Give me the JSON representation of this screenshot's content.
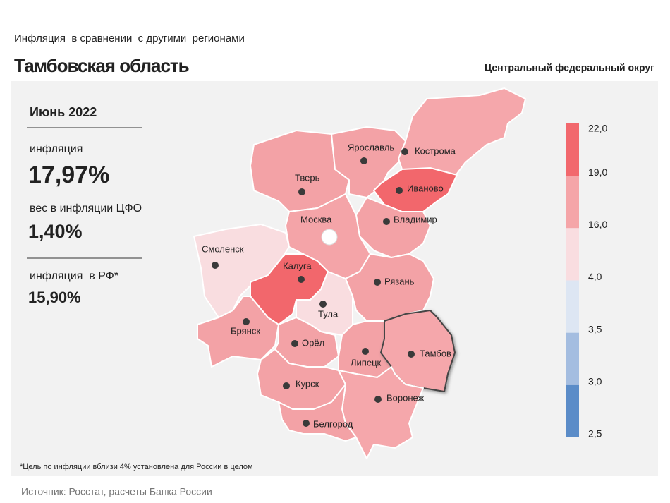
{
  "header": {
    "subtitle": "Инфляция  в сравнении  с другими  регионами",
    "title": "Тамбовская область",
    "district": "Центральный федеральный округ"
  },
  "panel": {
    "period": "Июнь 2022",
    "inflation_label": "инфляция",
    "inflation_value": "17,97%",
    "weight_label": "вес в инфляции ЦФО",
    "weight_value": "1,40%",
    "russia_label": "инфляция  в РФ*",
    "russia_value": "15,90%"
  },
  "map": {
    "regions": [
      {
        "name": "Тверь",
        "color": "#f3a2a6"
      },
      {
        "name": "Ярославль",
        "color": "#f3a2a6"
      },
      {
        "name": "Кострома",
        "color": "#f5a7ab"
      },
      {
        "name": "Иваново",
        "color": "#f2676c"
      },
      {
        "name": "Владимир",
        "color": "#f3a2a6"
      },
      {
        "name": "Москва",
        "color": "#f4a4a8"
      },
      {
        "name": "Смоленск",
        "color": "#f9dde0"
      },
      {
        "name": "Калуга",
        "color": "#f2676c"
      },
      {
        "name": "Тула",
        "color": "#f9dde0"
      },
      {
        "name": "Рязань",
        "color": "#f3a2a6"
      },
      {
        "name": "Брянск",
        "color": "#f3a2a6"
      },
      {
        "name": "Орёл",
        "color": "#f3a2a6"
      },
      {
        "name": "Липецк",
        "color": "#f3a2a6"
      },
      {
        "name": "Тамбов",
        "color": "#f5a7ab"
      },
      {
        "name": "Курск",
        "color": "#f3a2a6"
      },
      {
        "name": "Воронеж",
        "color": "#f5a7ab"
      },
      {
        "name": "Белгород",
        "color": "#f3a2a6"
      }
    ],
    "legend": {
      "ticks": [
        {
          "value": 22,
          "label": "22,0"
        },
        {
          "value": 19,
          "label": "19,0"
        },
        {
          "value": 16,
          "label": "16,0"
        },
        {
          "value": 4,
          "label": "4,0"
        },
        {
          "value": 3.5,
          "label": "3,5"
        },
        {
          "value": 3,
          "label": "3,0"
        },
        {
          "value": 2.5,
          "label": "2,5"
        }
      ],
      "colors": [
        "#f2686d",
        "#f5a5a8",
        "#f9dde0",
        "#dde6f3",
        "#a4bde0",
        "#5b8cc8"
      ]
    }
  },
  "footnote": "*Цель по инфляции вблизи 4% установлена для России в целом",
  "source": "Источник: Росстат, расчеты Банка России"
}
